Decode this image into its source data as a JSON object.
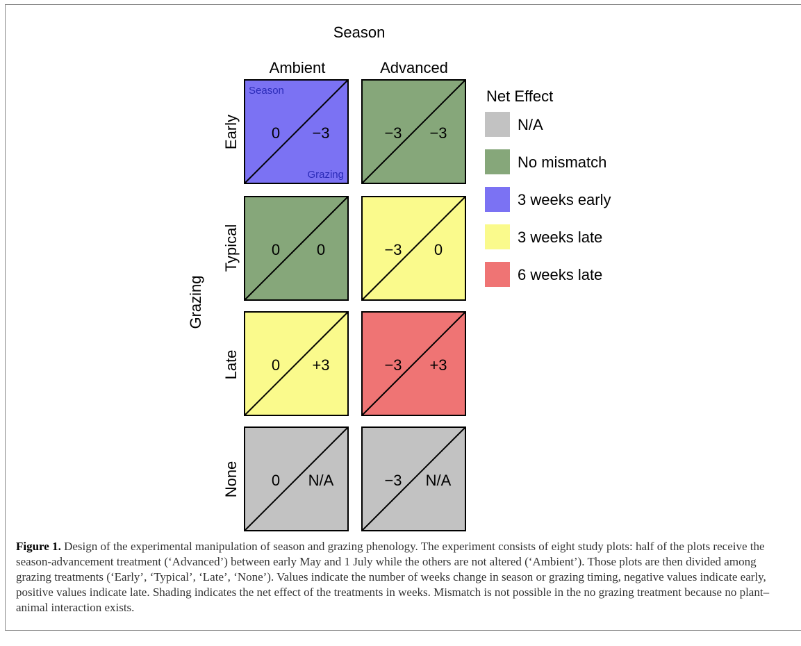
{
  "diagram": {
    "column_header": "Season",
    "columns": [
      "Ambient",
      "Advanced"
    ],
    "row_header": "Grazing",
    "rows": [
      "Early",
      "Typical",
      "Late",
      "None"
    ],
    "corner_labels": {
      "season": "Season",
      "grazing": "Grazing"
    },
    "cells": [
      {
        "row": "Early",
        "column": "Ambient",
        "season_value": "0",
        "grazing_value": "−3",
        "net_effect": "3 weeks early"
      },
      {
        "row": "Early",
        "column": "Advanced",
        "season_value": "−3",
        "grazing_value": "−3",
        "net_effect": "No mismatch"
      },
      {
        "row": "Typical",
        "column": "Ambient",
        "season_value": "0",
        "grazing_value": "0",
        "net_effect": "No mismatch"
      },
      {
        "row": "Typical",
        "column": "Advanced",
        "season_value": "−3",
        "grazing_value": "0",
        "net_effect": "3 weeks late"
      },
      {
        "row": "Late",
        "column": "Ambient",
        "season_value": "0",
        "grazing_value": "+3",
        "net_effect": "3 weeks late"
      },
      {
        "row": "Late",
        "column": "Advanced",
        "season_value": "−3",
        "grazing_value": "+3",
        "net_effect": "6 weeks late"
      },
      {
        "row": "None",
        "column": "Ambient",
        "season_value": "0",
        "grazing_value": "N/A",
        "net_effect": "N/A"
      },
      {
        "row": "None",
        "column": "Advanced",
        "season_value": "−3",
        "grazing_value": "N/A",
        "net_effect": "N/A"
      }
    ]
  },
  "legend": {
    "title": "Net Effect",
    "items": [
      {
        "label": "N/A",
        "color": "#c2c2c2"
      },
      {
        "label": "No mismatch",
        "color": "#86a77a"
      },
      {
        "label": "3 weeks early",
        "color": "#7b72f3"
      },
      {
        "label": "3 weeks late",
        "color": "#fafa8c"
      },
      {
        "label": "6 weeks late",
        "color": "#ef7474"
      }
    ]
  },
  "caption": {
    "label": "Figure 1.",
    "text": "Design of the experimental manipulation of season and grazing phenology. The experiment consists of eight study plots: half of the plots receive the season-advancement treatment (‘Advanced’) between early May and 1 July while the others are not altered (‘Ambient’). Those plots are then divided among grazing treatments (‘Early’, ‘Typical’, ‘Late’, ‘None’). Values indicate the number of weeks change in season or grazing timing, negative values indicate early, positive values indicate late. Shading indicates the net effect of the treatments in weeks. Mismatch is not possible in the no grazing treatment because no plant–animal interaction exists."
  }
}
